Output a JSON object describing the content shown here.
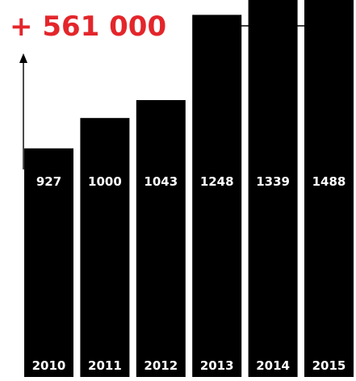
{
  "chart_data": {
    "type": "bar",
    "categories": [
      "2010",
      "2011",
      "2012",
      "2013",
      "2014",
      "2015"
    ],
    "values": [
      927,
      1000,
      1043,
      1248,
      1339,
      1488
    ],
    "value_labels": [
      "927",
      "1000",
      "1043",
      "1248",
      "1339",
      "1488"
    ],
    "title": "",
    "xlabel": "",
    "ylabel": "",
    "annotation": "+ 561 000",
    "grid": false,
    "legend": "none",
    "colors": {
      "bar": "#000000",
      "label": "#ffffff",
      "annotation": "#e3262b",
      "arrow": "#000000"
    }
  }
}
